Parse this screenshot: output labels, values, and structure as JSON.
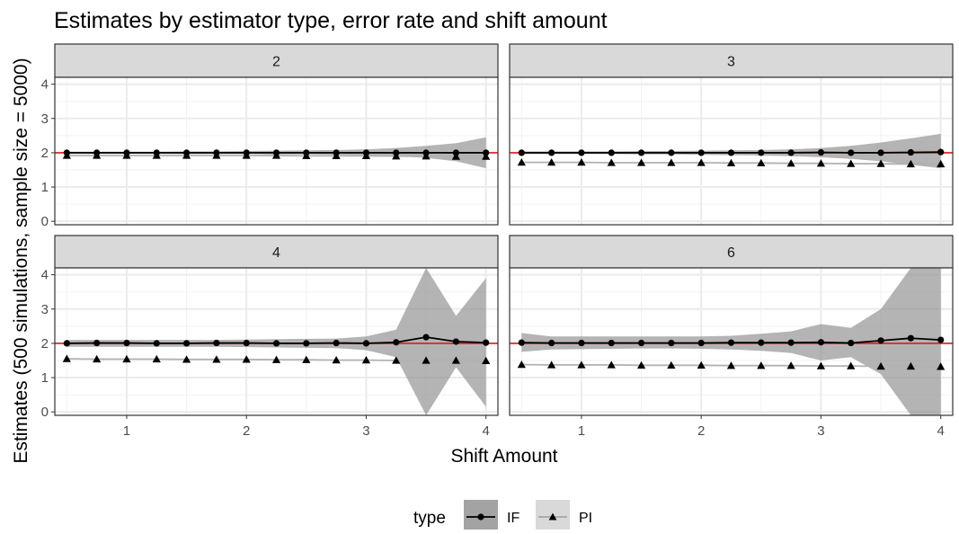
{
  "chart_data": {
    "type": "line",
    "title": "Estimates by estimator type, error rate and shift amount",
    "xlabel": "Shift Amount",
    "ylabel": "Estimates (500 simulations, sample size = 5000)",
    "xlim": [
      0.4,
      4.1
    ],
    "ylim": [
      -0.1,
      4.2
    ],
    "x_ticks": [
      1,
      2,
      3,
      4
    ],
    "y_ticks": [
      0,
      1,
      2,
      3,
      4
    ],
    "reference_line": 2,
    "reference_color": "#e41a1c",
    "grid": true,
    "legend": {
      "title": "type",
      "position": "bottom",
      "entries": [
        "IF",
        "PI"
      ]
    },
    "x": [
      0.5,
      0.75,
      1.0,
      1.25,
      1.5,
      1.75,
      2.0,
      2.25,
      2.5,
      2.75,
      3.0,
      3.25,
      3.5,
      3.75,
      4.0
    ],
    "facets": [
      {
        "label": "2",
        "series": [
          {
            "name": "IF",
            "marker": "circle",
            "color": "#000000",
            "ribbon_color": "#8c8c8c",
            "values": [
              2.0,
              2.0,
              2.0,
              2.0,
              2.0,
              2.0,
              2.0,
              2.0,
              2.0,
              2.0,
              2.0,
              2.0,
              2.0,
              2.0,
              2.0
            ],
            "lower": [
              1.97,
              1.97,
              1.97,
              1.97,
              1.96,
              1.96,
              1.96,
              1.95,
              1.95,
              1.94,
              1.93,
              1.9,
              1.85,
              1.75,
              1.55
            ],
            "upper": [
              2.03,
              2.03,
              2.03,
              2.03,
              2.04,
              2.04,
              2.05,
              2.06,
              2.07,
              2.08,
              2.1,
              2.14,
              2.2,
              2.28,
              2.45
            ]
          },
          {
            "name": "PI",
            "marker": "triangle",
            "color": "#b3b3b3",
            "ribbon_color": "#c8c8c8",
            "values": [
              1.92,
              1.92,
              1.92,
              1.92,
              1.92,
              1.92,
              1.92,
              1.92,
              1.91,
              1.91,
              1.91,
              1.9,
              1.9,
              1.89,
              1.89
            ],
            "lower": [
              1.9,
              1.9,
              1.9,
              1.9,
              1.9,
              1.9,
              1.9,
              1.89,
              1.89,
              1.89,
              1.88,
              1.88,
              1.87,
              1.86,
              1.86
            ],
            "upper": [
              1.94,
              1.94,
              1.94,
              1.94,
              1.94,
              1.94,
              1.94,
              1.95,
              1.93,
              1.93,
              1.94,
              1.92,
              1.93,
              1.92,
              1.92
            ]
          }
        ]
      },
      {
        "label": "3",
        "series": [
          {
            "name": "IF",
            "marker": "circle",
            "color": "#000000",
            "ribbon_color": "#8c8c8c",
            "values": [
              2.0,
              2.0,
              2.0,
              2.0,
              2.0,
              2.0,
              2.0,
              2.0,
              2.0,
              2.0,
              2.01,
              2.0,
              2.0,
              2.01,
              2.02
            ],
            "lower": [
              1.96,
              1.96,
              1.96,
              1.96,
              1.95,
              1.95,
              1.94,
              1.93,
              1.92,
              1.9,
              1.87,
              1.82,
              1.75,
              1.65,
              1.55
            ],
            "upper": [
              2.04,
              2.04,
              2.04,
              2.04,
              2.05,
              2.05,
              2.06,
              2.07,
              2.08,
              2.1,
              2.14,
              2.2,
              2.3,
              2.42,
              2.55
            ]
          },
          {
            "name": "PI",
            "marker": "triangle",
            "color": "#b3b3b3",
            "ribbon_color": "#c8c8c8",
            "values": [
              1.72,
              1.72,
              1.72,
              1.71,
              1.71,
              1.71,
              1.71,
              1.7,
              1.7,
              1.69,
              1.69,
              1.68,
              1.68,
              1.67,
              1.67
            ],
            "lower": [
              1.7,
              1.7,
              1.7,
              1.69,
              1.69,
              1.69,
              1.69,
              1.68,
              1.68,
              1.67,
              1.67,
              1.66,
              1.65,
              1.64,
              1.64
            ],
            "upper": [
              1.74,
              1.74,
              1.74,
              1.73,
              1.73,
              1.73,
              1.73,
              1.72,
              1.72,
              1.71,
              1.71,
              1.7,
              1.71,
              1.7,
              1.7
            ]
          }
        ]
      },
      {
        "label": "4",
        "series": [
          {
            "name": "IF",
            "marker": "circle",
            "color": "#000000",
            "ribbon_color": "#8c8c8c",
            "values": [
              2.0,
              2.01,
              2.01,
              2.0,
              2.0,
              2.01,
              2.01,
              2.0,
              2.0,
              2.01,
              2.0,
              2.03,
              2.18,
              2.05,
              2.02
            ],
            "lower": [
              1.9,
              1.9,
              1.9,
              1.9,
              1.9,
              1.9,
              1.89,
              1.88,
              1.87,
              1.86,
              1.8,
              1.6,
              -0.1,
              1.3,
              0.15
            ],
            "upper": [
              2.1,
              2.1,
              2.1,
              2.1,
              2.1,
              2.1,
              2.11,
              2.12,
              2.13,
              2.14,
              2.2,
              2.4,
              4.2,
              2.8,
              3.9
            ]
          },
          {
            "name": "PI",
            "marker": "triangle",
            "color": "#b3b3b3",
            "ribbon_color": "#c8c8c8",
            "values": [
              1.55,
              1.54,
              1.54,
              1.54,
              1.53,
              1.53,
              1.53,
              1.52,
              1.52,
              1.51,
              1.51,
              1.5,
              1.5,
              1.5,
              1.49
            ],
            "lower": [
              1.53,
              1.52,
              1.52,
              1.52,
              1.51,
              1.51,
              1.51,
              1.5,
              1.5,
              1.49,
              1.49,
              1.48,
              1.47,
              1.47,
              1.46
            ],
            "upper": [
              1.57,
              1.56,
              1.56,
              1.56,
              1.55,
              1.55,
              1.55,
              1.54,
              1.54,
              1.53,
              1.53,
              1.52,
              1.53,
              1.53,
              1.52
            ]
          }
        ]
      },
      {
        "label": "6",
        "series": [
          {
            "name": "IF",
            "marker": "circle",
            "color": "#000000",
            "ribbon_color": "#8c8c8c",
            "values": [
              2.02,
              2.01,
              2.01,
              2.01,
              2.01,
              2.01,
              2.01,
              2.02,
              2.02,
              2.02,
              2.03,
              2.01,
              2.08,
              2.15,
              2.1
            ],
            "lower": [
              1.75,
              1.82,
              1.83,
              1.84,
              1.85,
              1.85,
              1.84,
              1.82,
              1.78,
              1.72,
              1.5,
              1.6,
              1.1,
              -0.1,
              -0.1
            ],
            "upper": [
              2.3,
              2.2,
              2.2,
              2.2,
              2.2,
              2.2,
              2.2,
              2.22,
              2.28,
              2.35,
              2.56,
              2.45,
              3.0,
              4.2,
              4.2
            ]
          },
          {
            "name": "PI",
            "marker": "triangle",
            "color": "#b3b3b3",
            "ribbon_color": "#c8c8c8",
            "values": [
              1.38,
              1.37,
              1.37,
              1.37,
              1.36,
              1.36,
              1.36,
              1.35,
              1.35,
              1.35,
              1.34,
              1.34,
              1.33,
              1.33,
              1.32
            ],
            "lower": [
              1.36,
              1.35,
              1.35,
              1.35,
              1.34,
              1.34,
              1.34,
              1.33,
              1.33,
              1.33,
              1.32,
              1.32,
              1.31,
              1.3,
              1.29
            ],
            "upper": [
              1.4,
              1.39,
              1.39,
              1.39,
              1.38,
              1.38,
              1.38,
              1.37,
              1.37,
              1.37,
              1.36,
              1.36,
              1.35,
              1.36,
              1.35
            ]
          }
        ]
      }
    ]
  }
}
